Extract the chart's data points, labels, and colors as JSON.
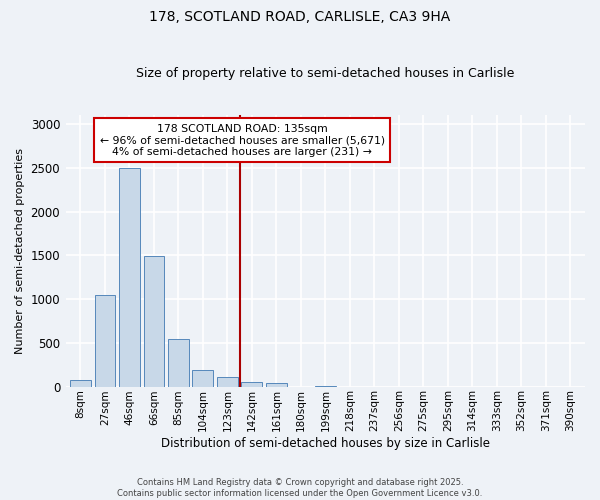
{
  "title1": "178, SCOTLAND ROAD, CARLISLE, CA3 9HA",
  "title2": "Size of property relative to semi-detached houses in Carlisle",
  "xlabel": "Distribution of semi-detached houses by size in Carlisle",
  "ylabel": "Number of semi-detached properties",
  "categories": [
    "8sqm",
    "27sqm",
    "46sqm",
    "66sqm",
    "85sqm",
    "104sqm",
    "123sqm",
    "142sqm",
    "161sqm",
    "180sqm",
    "199sqm",
    "218sqm",
    "237sqm",
    "256sqm",
    "275sqm",
    "295sqm",
    "314sqm",
    "333sqm",
    "352sqm",
    "371sqm",
    "390sqm"
  ],
  "values": [
    75,
    1050,
    2500,
    1490,
    540,
    190,
    110,
    55,
    35,
    0,
    5,
    0,
    0,
    0,
    0,
    0,
    0,
    0,
    0,
    0,
    0
  ],
  "bar_color": "#c8d8e8",
  "bar_edge_color": "#5588bb",
  "vline_x_index": 7,
  "vline_color": "#aa0000",
  "annotation_text": "178 SCOTLAND ROAD: 135sqm\n← 96% of semi-detached houses are smaller (5,671)\n4% of semi-detached houses are larger (231) →",
  "annotation_box_color": "#cc0000",
  "annotation_text_color": "#000000",
  "ylim": [
    0,
    3100
  ],
  "yticks": [
    0,
    500,
    1000,
    1500,
    2000,
    2500,
    3000
  ],
  "footer1": "Contains HM Land Registry data © Crown copyright and database right 2025.",
  "footer2": "Contains public sector information licensed under the Open Government Licence v3.0.",
  "background_color": "#eef2f7",
  "plot_background": "#eef2f7",
  "grid_color": "#ffffff"
}
